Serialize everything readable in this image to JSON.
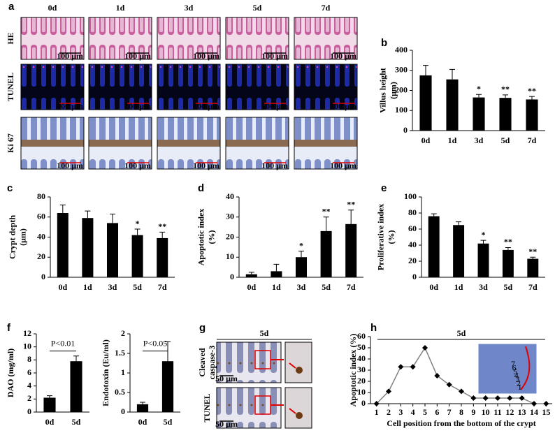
{
  "panel_labels": [
    "a",
    "b",
    "c",
    "d",
    "e",
    "f",
    "g",
    "h"
  ],
  "micrographs_a": {
    "columns": [
      "0d",
      "1d",
      "3d",
      "5d",
      "7d"
    ],
    "rows": [
      "HE",
      "TUNEL",
      "Ki 67"
    ],
    "scale_bar": "100 μm"
  },
  "micrographs_g": {
    "title": "5d",
    "rows": [
      [
        "Cleaved",
        "caspase-3"
      ],
      [
        "TUNEL"
      ]
    ],
    "scale_bar": "50 μm"
  },
  "chart_data": [
    {
      "type": "bar",
      "ylabel": [
        "Villus height",
        "(μm)"
      ],
      "categories": [
        "0d",
        "1d",
        "3d",
        "5d",
        "7d"
      ],
      "values": [
        275,
        255,
        165,
        163,
        155
      ],
      "errors": [
        50,
        50,
        15,
        15,
        15
      ],
      "significance": [
        null,
        null,
        "*",
        "**",
        "**"
      ],
      "color": "#000000",
      "ylim": [
        0,
        400
      ],
      "yticks": [
        0,
        100,
        200,
        300,
        400
      ]
    },
    {
      "type": "bar",
      "ylabel": [
        "Crypt depth",
        "(μm)"
      ],
      "categories": [
        "0d",
        "1d",
        "3d",
        "5d",
        "7d"
      ],
      "values": [
        64,
        59,
        54,
        42,
        39
      ],
      "errors": [
        8,
        7,
        9,
        6,
        6
      ],
      "significance": [
        null,
        null,
        null,
        "*",
        "**"
      ],
      "color": "#000000",
      "ylim": [
        0,
        80
      ],
      "yticks": [
        0,
        20,
        40,
        60,
        80
      ]
    },
    {
      "type": "bar",
      "ylabel": [
        "Apoptotic index",
        "(%)"
      ],
      "categories": [
        "0d",
        "1d",
        "3d",
        "5d",
        "7d"
      ],
      "values": [
        1.5,
        3,
        10,
        23,
        26.5
      ],
      "errors": [
        1,
        3.5,
        3,
        7,
        7
      ],
      "significance": [
        null,
        null,
        "*",
        "**",
        "**"
      ],
      "color": "#000000",
      "ylim": [
        0,
        40
      ],
      "yticks": [
        0,
        10,
        20,
        30,
        40
      ]
    },
    {
      "type": "bar",
      "ylabel": [
        "Proliferative index",
        "(%)"
      ],
      "categories": [
        "0d",
        "1d",
        "3d",
        "5d",
        "7d"
      ],
      "values": [
        76,
        65,
        42,
        34,
        23
      ],
      "errors": [
        3,
        4,
        4,
        3,
        2
      ],
      "significance": [
        null,
        null,
        "*",
        "**",
        "**"
      ],
      "color": "#000000",
      "ylim": [
        0,
        100
      ],
      "yticks": [
        0,
        20,
        40,
        60,
        80,
        100
      ]
    },
    {
      "type": "bar",
      "ylabel": [
        "DAO (mg/ml)"
      ],
      "categories": [
        "0d",
        "5d"
      ],
      "values": [
        2.2,
        7.8
      ],
      "errors": [
        0.3,
        0.8
      ],
      "p_annotation": "P<0.01",
      "color": "#000000",
      "ylim": [
        0,
        12
      ],
      "yticks": [
        0,
        2,
        4,
        6,
        8,
        10,
        12
      ]
    },
    {
      "type": "bar",
      "ylabel": [
        "Endotoxin (Eu/ml)"
      ],
      "categories": [
        "0d",
        "5d"
      ],
      "values": [
        0.2,
        1.3
      ],
      "errors": [
        0.05,
        0.5
      ],
      "p_annotation": "P<0.05",
      "color": "#000000",
      "ylim": [
        0,
        2
      ],
      "yticks": [
        0,
        0.5,
        1,
        1.5,
        2
      ]
    },
    {
      "type": "line",
      "title": "5d",
      "xlabel": "Cell position from the bottom of the crypt",
      "ylabel": [
        "Apoptotic index (%)"
      ],
      "x": [
        1,
        2,
        3,
        4,
        5,
        6,
        7,
        8,
        9,
        10,
        11,
        12,
        13,
        14,
        15
      ],
      "values": [
        0,
        11,
        33,
        33,
        50,
        25,
        17,
        11,
        5,
        5,
        5,
        5,
        5,
        0,
        0
      ],
      "color": "#808080",
      "marker_color": "#000000",
      "xlim": [
        0.5,
        15.5
      ],
      "xticks": [
        1,
        2,
        3,
        4,
        5,
        6,
        7,
        8,
        9,
        10,
        11,
        12,
        13,
        14,
        15
      ],
      "ylim": [
        0,
        60
      ],
      "yticks": [
        0,
        10,
        20,
        30,
        40,
        50,
        60
      ],
      "inset_labels": [
        "7",
        "6",
        "5",
        "4",
        "3",
        "2",
        "1"
      ]
    }
  ]
}
